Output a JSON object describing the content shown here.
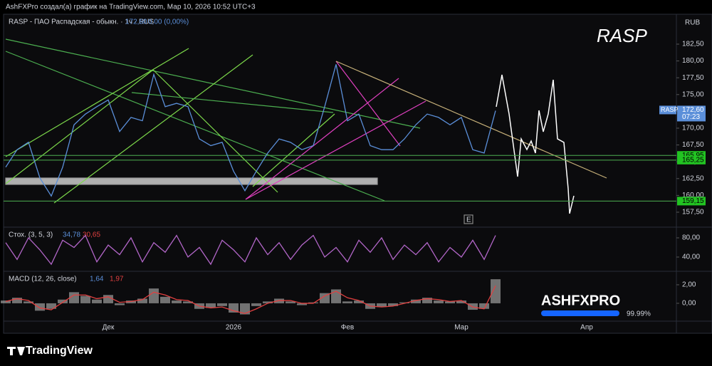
{
  "header": "AshFXPro создал(а) график на TradingView.com, Мар 10, 2026 10:52 UTC+3",
  "symbol_info": "RASP - ПАО Распадская - обыкн. · 1ч · RUS",
  "symbol_price": "172,60",
  "symbol_change": "0,00 (0,00%)",
  "currency": "RUB",
  "big_title": "RASP",
  "event_marker": "E",
  "watermark": "ASHFXPRO",
  "watermark_percent": "99.99%",
  "logo": "TradingView",
  "chart_data": [
    {
      "type": "line",
      "color": "#5b8fd9",
      "categories": [
        null,
        null,
        null,
        null,
        null,
        null,
        null,
        null,
        null,
        "Дек",
        null,
        null,
        null,
        null,
        null,
        null,
        null,
        null,
        null,
        null,
        "2026",
        null,
        null,
        null,
        null,
        null,
        null,
        null,
        null,
        null,
        "Фев",
        null,
        null,
        null,
        null,
        null,
        null,
        null,
        null,
        null,
        "Мар",
        null,
        null,
        null,
        null,
        null,
        null,
        null,
        null,
        null,
        null,
        "Апр",
        null,
        null,
        null,
        null,
        null,
        null,
        null
      ],
      "values": [
        164.2,
        166.8,
        167.9,
        162.6,
        159.9,
        164.2,
        170.5,
        172.1,
        173.2,
        174.2,
        169.5,
        171.6,
        171.1,
        178.0,
        173.2,
        173.7,
        173.2,
        168.4,
        167.4,
        167.9,
        163.6,
        160.7,
        163.6,
        166.3,
        168.4,
        167.9,
        166.8,
        167.4,
        173.2,
        179.5,
        171.1,
        172.1,
        167.4,
        166.8,
        166.8,
        168.4,
        170.5,
        172.1,
        171.6,
        170.5,
        171.6,
        166.8,
        166.3,
        172.6,
        null,
        null,
        null,
        null,
        null,
        null,
        null,
        null,
        null,
        null,
        null,
        null,
        null,
        null,
        null
      ],
      "ylim": [
        155.38,
        186.95
      ],
      "yticks": [
        {
          "value": 157.5,
          "label": "157,50"
        },
        {
          "value": 160,
          "label": "160,00"
        },
        {
          "value": 162.5,
          "label": "162,50"
        },
        {
          "value": 165,
          "label": "165,00"
        },
        {
          "value": 167.5,
          "label": "167,50"
        },
        {
          "value": 170,
          "label": "170,00"
        },
        {
          "value": 172.5,
          "label": "172,50"
        },
        {
          "value": 175,
          "label": "175,00"
        },
        {
          "value": 177.5,
          "label": "177,50"
        },
        {
          "value": 180,
          "label": "180,00"
        },
        {
          "value": 182.5,
          "label": "182,50"
        }
      ],
      "price_tag": {
        "name": "RASP",
        "value": 172.6,
        "label": "172,60",
        "timer": "07:23"
      },
      "levels": [
        {
          "value": 165.95,
          "label": "165,95"
        },
        {
          "value": 165.25,
          "label": "165,25"
        },
        {
          "value": 159.15,
          "label": "159,15"
        }
      ]
    },
    {
      "type": "line",
      "title": "Стох. (3, 5, 3)",
      "legend_values": [
        "34,78",
        "30,65"
      ],
      "series": [
        {
          "color": "#b266c8",
          "values": [
            70,
            35,
            80,
            55,
            25,
            75,
            60,
            85,
            30,
            65,
            45,
            80,
            30,
            70,
            50,
            85,
            40,
            60,
            25,
            75,
            55,
            30,
            80,
            45,
            70,
            35,
            65,
            85,
            40,
            60,
            30,
            75,
            50,
            80,
            35,
            65,
            45,
            70,
            30,
            60,
            40,
            75,
            35,
            85
          ]
        }
      ],
      "ylim": [
        11.9,
        100.7
      ],
      "yticks": [
        {
          "value": 40,
          "label": "40,00"
        },
        {
          "value": 80,
          "label": "80,00"
        }
      ]
    },
    {
      "type": "bar",
      "title": "MACD (12, 26, close)",
      "legend_values": [
        "1,64",
        "1,97"
      ],
      "series": [
        {
          "color": "#9e9e9e",
          "values": [
            0.3,
            0.6,
            0.2,
            -0.8,
            -0.6,
            0.4,
            1.2,
            0.8,
            0.4,
            0.9,
            -0.2,
            0.3,
            0.5,
            1.6,
            0.7,
            0.3,
            0.2,
            -0.6,
            -0.5,
            -0.3,
            -1.0,
            -1.2,
            -0.3,
            0.2,
            0.5,
            0.2,
            -0.2,
            0.1,
            1.1,
            1.5,
            0.2,
            0.3,
            -0.6,
            -0.4,
            -0.3,
            0.1,
            0.4,
            0.6,
            0.3,
            0.2,
            0.3,
            -0.7,
            -0.6,
            2.6
          ]
        },
        {
          "color": "#e04040",
          "values": [
            0.2,
            0.5,
            0.3,
            -0.5,
            -0.7,
            0.1,
            0.9,
            0.9,
            0.5,
            0.7,
            0.1,
            0.2,
            0.4,
            1.2,
            0.9,
            0.4,
            0.3,
            -0.3,
            -0.5,
            -0.4,
            -0.8,
            -1.1,
            -0.6,
            0.0,
            0.3,
            0.3,
            0.0,
            0.0,
            0.8,
            1.3,
            0.6,
            0.3,
            -0.3,
            -0.4,
            -0.3,
            0.0,
            0.3,
            0.5,
            0.4,
            0.2,
            0.3,
            -0.4,
            -0.6,
            1.9
          ]
        }
      ],
      "ylim": [
        -1.85,
        3.38
      ],
      "yticks": [
        {
          "value": 0,
          "label": "0,00"
        },
        {
          "value": 2,
          "label": "2,00"
        }
      ]
    }
  ]
}
